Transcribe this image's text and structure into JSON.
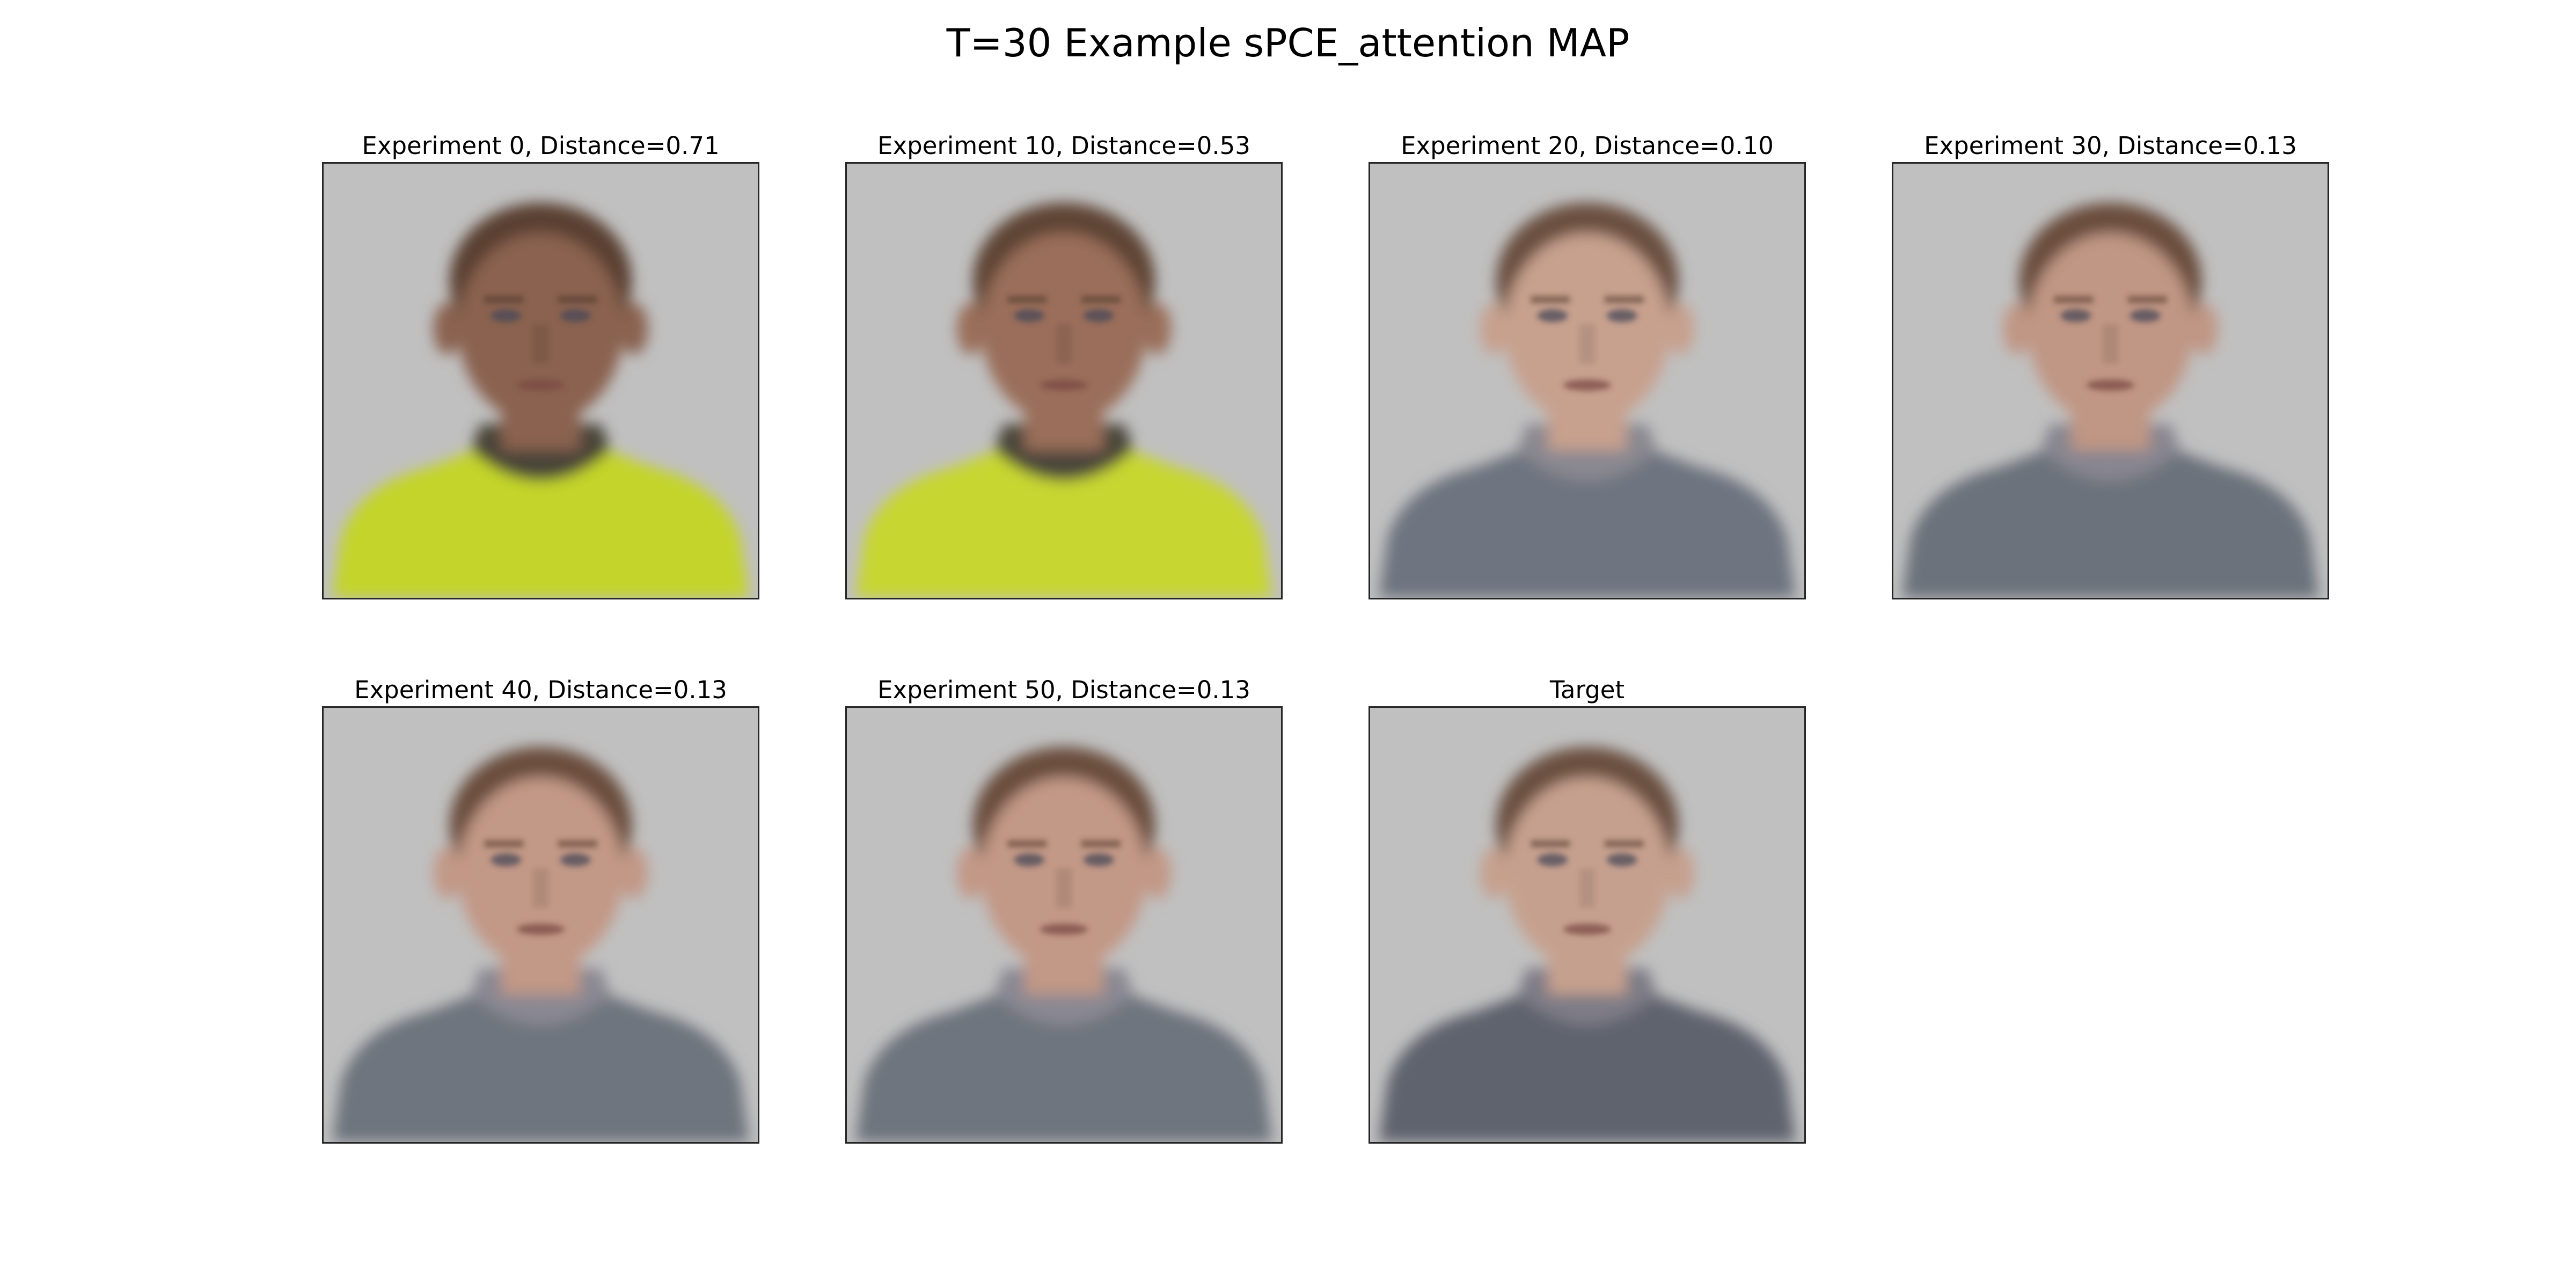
{
  "figure": {
    "title": "T=30 Example sPCE_attention MAP"
  },
  "panels": [
    {
      "title": "Experiment 0, Distance=0.71",
      "skin": "#8a6250",
      "hair": "#5a4030",
      "clothing": "#c4d42a",
      "collar": "#4a4438"
    },
    {
      "title": "Experiment 10, Distance=0.53",
      "skin": "#9a6e5a",
      "hair": "#5e4434",
      "clothing": "#c8d630",
      "collar": "#4c463a"
    },
    {
      "title": "Experiment 20, Distance=0.10",
      "skin": "#c7a08e",
      "hair": "#6a5040",
      "clothing": "#6e7480",
      "collar": "#8a8890"
    },
    {
      "title": "Experiment 30, Distance=0.13",
      "skin": "#c09684",
      "hair": "#6a4e3e",
      "clothing": "#6c727c",
      "collar": "#888690"
    },
    {
      "title": "Experiment 40, Distance=0.13",
      "skin": "#c29886",
      "hair": "#6a4e3e",
      "clothing": "#6e747e",
      "collar": "#8a8892"
    },
    {
      "title": "Experiment 50, Distance=0.13",
      "skin": "#c29886",
      "hair": "#6a4e3e",
      "clothing": "#6e747e",
      "collar": "#8a8892"
    },
    {
      "title": "Target",
      "skin": "#c6a08e",
      "hair": "#6a5040",
      "clothing": "#5e646e",
      "collar": "#7e7c86"
    }
  ],
  "colors": {
    "background": "#c0c0c0",
    "frame": "#262626"
  }
}
